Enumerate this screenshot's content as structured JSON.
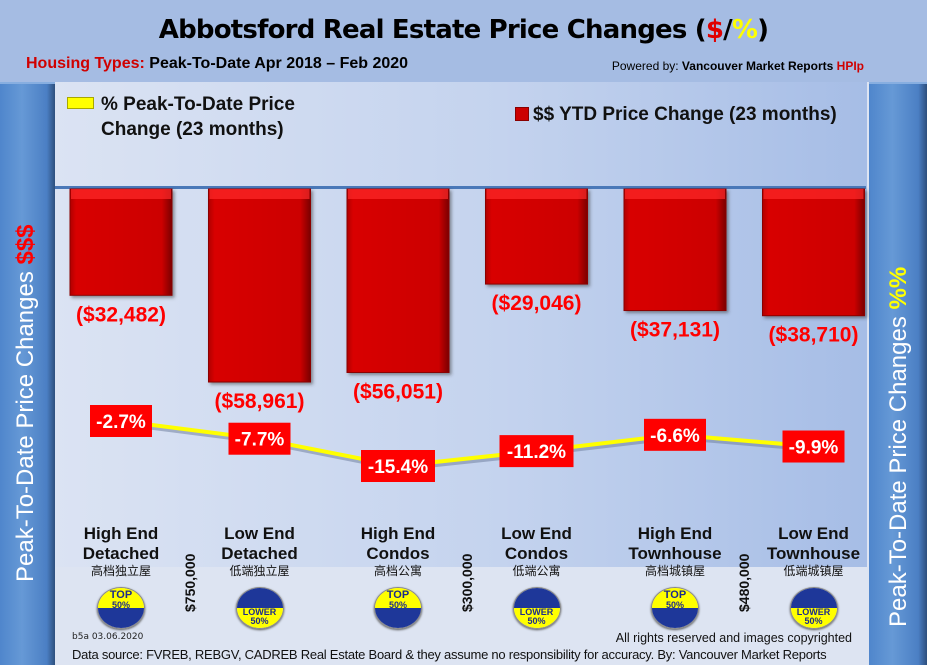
{
  "header": {
    "title_main": "Abbotsford Real Estate Price Changes (",
    "title_dollar": "$",
    "title_slash": "/",
    "title_pct": "%",
    "title_close": ")",
    "subtitle_label": "Housing Types:",
    "subtitle_value": " Peak-To-Date Apr 2018 – Feb 2020",
    "powered_prefix": "Powered by: ",
    "powered_brand": "Vancouver Market Reports ",
    "powered_hpi": "HPIp"
  },
  "side_left": {
    "text": "Peak-To-Date Price Changes ",
    "accent": "$$$"
  },
  "side_right": {
    "text": "Peak-To-Date  Price  Changes  ",
    "accent": "%%"
  },
  "legend": {
    "pct_line1": "% Peak-To-Date Price",
    "pct_line2": "Change (23 months)",
    "dollar": "$$ YTD Price Change (23 months)"
  },
  "chart_data": {
    "type": "bar",
    "title": "Abbotsford Real Estate Price Changes ($/%)",
    "subtitle": "Housing Types: Peak-To-Date Apr 2018 – Feb 2020",
    "categories": [
      "High End Detached",
      "Low End Detached",
      "High End Condos",
      "Low End Condos",
      "High End Townhouse",
      "Low End Townhouse"
    ],
    "series": [
      {
        "name": "$$ YTD Price Change (23 months)",
        "type": "bar",
        "color": "#cc0000",
        "values": [
          -32482,
          -58961,
          -56051,
          -29046,
          -37131,
          -38710
        ],
        "labels": [
          "($32,482)",
          "($58,961)",
          "($56,051)",
          "($29,046)",
          "($37,131)",
          "($38,710)"
        ]
      },
      {
        "name": "% Peak-To-Date Price Change (23 months)",
        "type": "line",
        "color": "#ffff00",
        "values": [
          -2.7,
          -7.7,
          -15.4,
          -11.2,
          -6.6,
          -9.9
        ],
        "labels": [
          "-2.7%",
          "-7.7%",
          "-15.4%",
          "-11.2%",
          "-6.6%",
          "-9.9%"
        ]
      }
    ],
    "ylabel_left": "Peak-To-Date Price Changes $$$",
    "ylabel_right": "Peak-To-Date Price Changes %%",
    "legend_position": "top",
    "grid": false
  },
  "categories": [
    {
      "line1": "High End",
      "line2": "Detached",
      "chinese": "高档独立屋",
      "badge": "top",
      "badge_line1": "TOP",
      "badge_line2": "50%"
    },
    {
      "line1": "Low End",
      "line2": "Detached",
      "chinese": "低端独立屋",
      "badge": "low",
      "badge_line1": "LOWER",
      "badge_line2": "50%"
    },
    {
      "line1": "High End",
      "line2": "Condos",
      "chinese": "高档公寓",
      "badge": "top",
      "badge_line1": "TOP",
      "badge_line2": "50%"
    },
    {
      "line1": "Low End",
      "line2": "Condos",
      "chinese": "低端公寓",
      "badge": "low",
      "badge_line1": "LOWER",
      "badge_line2": "50%"
    },
    {
      "line1": "High End",
      "line2": "Townhouse",
      "chinese": "高档城镇屋",
      "badge": "top",
      "badge_line1": "TOP",
      "badge_line2": "50%"
    },
    {
      "line1": "Low End",
      "line2": "Townhouse",
      "chinese": "低端城镇屋",
      "badge": "low",
      "badge_line1": "LOWER",
      "badge_line2": "50%"
    }
  ],
  "thresholds": [
    "$750,000",
    "$300,000",
    "$480,000"
  ],
  "footer": {
    "version_date": "b5a 03.06.2020",
    "rights": "All rights reserved and  images copyrighted",
    "source": "Data source: FVREB, REBGV, CADREB Real Estate Board & they assume no responsibility for accuracy. By: Vancouver Market Reports"
  }
}
